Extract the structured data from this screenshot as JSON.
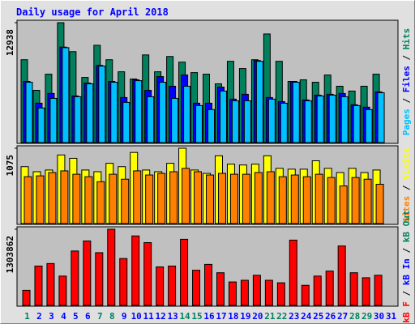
{
  "chart_data": [
    {
      "type": "bar",
      "title": "Daily usage for April 2018",
      "ylim": [
        0,
        12938
      ],
      "yticks": [
        12938
      ],
      "legend_separator": " / ",
      "series": [
        {
          "name": "Hits",
          "color": "#00805c",
          "values": [
            8940,
            5640,
            7380,
            12938,
            9810,
            7030,
            10500,
            8940,
            7640,
            6860,
            9460,
            7640,
            9290,
            8680,
            7550,
            7380,
            6340,
            8770,
            7990,
            8940,
            11720,
            8770,
            6600,
            6770,
            6510,
            7290,
            6080,
            5560,
            6080,
            7380,
            null
          ]
        },
        {
          "name": "Files",
          "color": "#0000ff",
          "values": [
            6600,
            4250,
            5300,
            10300,
            5030,
            6420,
            8330,
            6600,
            4860,
            6770,
            5640,
            7120,
            6080,
            7290,
            4250,
            4250,
            5990,
            4690,
            5210,
            8850,
            4860,
            4420,
            6600,
            4600,
            5120,
            5210,
            5300,
            4080,
            3820,
            5470,
            null
          ]
        },
        {
          "name": "Pages",
          "color": "#00c0ff",
          "values": [
            6510,
            3730,
            4770,
            10240,
            4950,
            6340,
            8250,
            6510,
            4340,
            6680,
            4950,
            6510,
            4770,
            6080,
            3990,
            3560,
            5560,
            4510,
            4510,
            8770,
            4690,
            4250,
            6510,
            4510,
            5030,
            5120,
            4950,
            3990,
            3560,
            5380,
            null
          ]
        }
      ]
    },
    {
      "type": "bar",
      "ylim": [
        0,
        1075
      ],
      "yticks": [
        1075
      ],
      "legend_separator": " / ",
      "series": [
        {
          "name": "Visits",
          "color": "#ffff00",
          "values": [
            812,
            740,
            764,
            979,
            931,
            764,
            740,
            860,
            812,
            1015,
            764,
            740,
            860,
            1075,
            764,
            716,
            967,
            848,
            836,
            848,
            967,
            788,
            776,
            776,
            896,
            788,
            728,
            788,
            728,
            764,
            null
          ]
        },
        {
          "name": "Sites",
          "color": "#ff8000",
          "values": [
            669,
            681,
            728,
            752,
            704,
            669,
            597,
            704,
            633,
            752,
            693,
            716,
            740,
            788,
            740,
            693,
            716,
            704,
            704,
            728,
            740,
            669,
            693,
            669,
            704,
            657,
            537,
            657,
            633,
            561,
            null
          ]
        }
      ]
    },
    {
      "type": "bar",
      "ylim": [
        0,
        1303862
      ],
      "yticks": [
        1303862
      ],
      "legend_separator": " / ",
      "series": [
        {
          "name": "kB F",
          "color": "#ff0000",
          "values": [
            257900,
            673400,
            716400,
            501500,
            931300,
            1103300,
            902700,
            1303862,
            802400,
            1189200,
            1074600,
            659100,
            673400,
            1131900,
            601800,
            702100,
            558800,
            401200,
            429800,
            515800,
            429800,
            386900,
            1117600,
            343900,
            501500,
            587400,
            1017300,
            558800,
            472800,
            515800,
            null
          ]
        }
      ],
      "legend_only": [
        {
          "name": "kB In",
          "color": "#0000ff"
        },
        {
          "name": "kB Out",
          "color": "#00805c"
        }
      ],
      "categories": [
        "1",
        "2",
        "3",
        "4",
        "5",
        "6",
        "7",
        "8",
        "9",
        "10",
        "11",
        "12",
        "13",
        "14",
        "15",
        "16",
        "17",
        "18",
        "19",
        "20",
        "21",
        "22",
        "23",
        "24",
        "25",
        "26",
        "27",
        "28",
        "29",
        "30",
        "31"
      ],
      "weekday_color": "#0000ff",
      "weekend_color": "#00805c",
      "weekends": [
        0,
        6,
        7,
        13,
        14,
        20,
        21,
        27,
        28
      ]
    }
  ]
}
